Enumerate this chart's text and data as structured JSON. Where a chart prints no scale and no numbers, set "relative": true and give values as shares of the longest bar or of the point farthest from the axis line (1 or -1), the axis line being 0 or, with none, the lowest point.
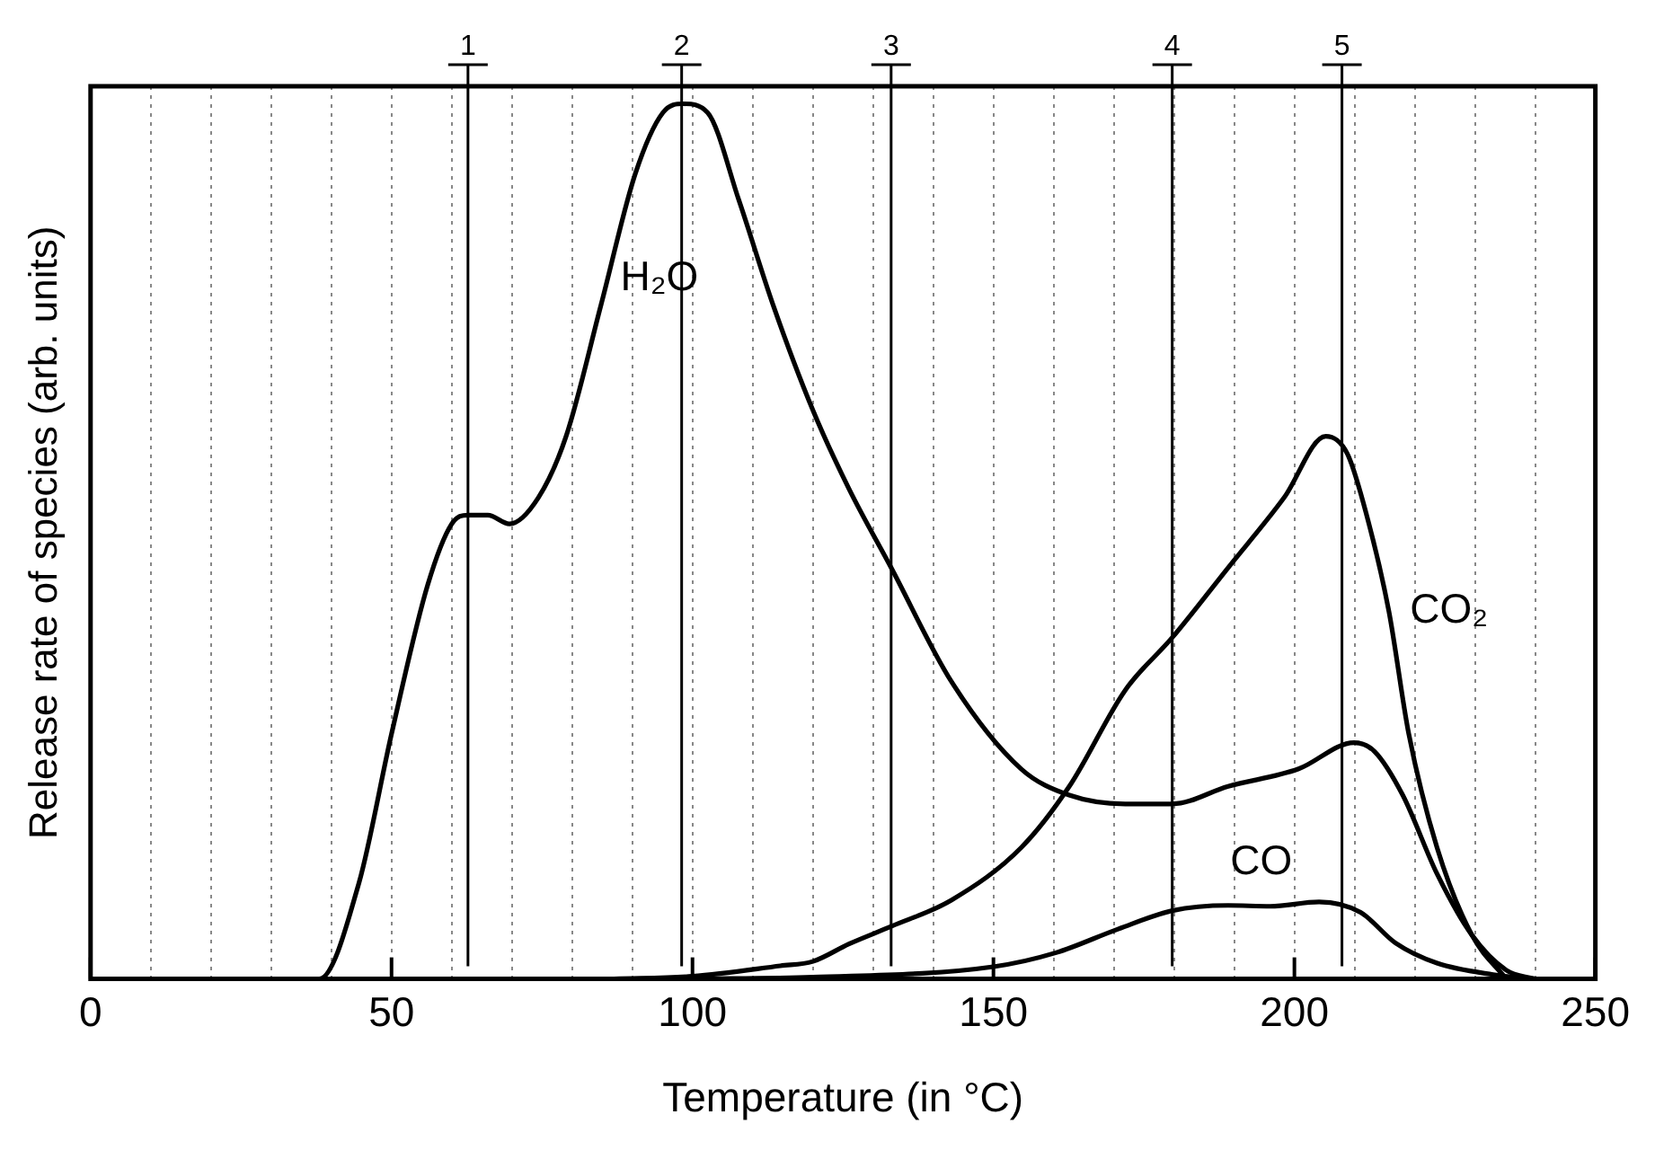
{
  "chart_data": {
    "type": "line",
    "xlabel": "Temperature (in °C)",
    "ylabel": "Release rate of species (arb. units)",
    "relative": true,
    "legend": false,
    "grid": "x",
    "marker": "none",
    "line_style": "solid",
    "xlim": [
      0,
      250
    ],
    "xticks": [
      0,
      {
        "value": 10,
        "label": null
      },
      {
        "value": 20,
        "label": null
      },
      {
        "value": 30,
        "label": null
      },
      {
        "value": 40,
        "label": null
      },
      50,
      {
        "value": 60,
        "label": null
      },
      {
        "value": 70,
        "label": null
      },
      {
        "value": 80,
        "label": null
      },
      {
        "value": 90,
        "label": null
      },
      100,
      {
        "value": 110,
        "label": null
      },
      {
        "value": 120,
        "label": null
      },
      {
        "value": 130,
        "label": null
      },
      {
        "value": 140,
        "label": null
      },
      150,
      {
        "value": 160,
        "label": null
      },
      {
        "value": 170,
        "label": null
      },
      {
        "value": 180,
        "label": null
      },
      {
        "value": 190,
        "label": null
      },
      200,
      {
        "value": 210,
        "label": null
      },
      {
        "value": 220,
        "label": null
      },
      {
        "value": 230,
        "label": null
      },
      {
        "value": 240,
        "label": null
      },
      250
    ],
    "series": [
      {
        "name": "H₂O",
        "color": "#000000",
        "x": [
          23,
          38,
          44.6,
          50,
          56,
          60,
          62.7,
          66,
          69.6,
          74.4,
          79,
          84.8,
          90.5,
          95.1,
          98.5,
          102.5,
          107.7,
          113.4,
          120,
          126,
          133,
          143,
          154.6,
          162.6,
          171.9,
          179.7,
          189,
          200.7,
          209.9,
          213.3,
          218,
          223.7,
          229.5,
          235.2,
          239.9
        ],
        "values": [
          0,
          0,
          0.11,
          0.28,
          0.45,
          0.52,
          0.53,
          0.53,
          0.52,
          0.55,
          0.62,
          0.77,
          0.92,
          0.99,
          1,
          0.99,
          0.89,
          0.77,
          0.65,
          0.56,
          0.47,
          0.34,
          0.24,
          0.21,
          0.2,
          0.2,
          0.22,
          0.24,
          0.27,
          0.26,
          0.21,
          0.12,
          0.05,
          0.01,
          0
        ]
      },
      {
        "name": "CO₂",
        "color": "#000000",
        "x": [
          87,
          100,
          114.6,
          120,
          126,
          133,
          143,
          154.6,
          162.6,
          171.9,
          179.7,
          189,
          198.3,
          205.2,
          208.8,
          212,
          215.7,
          219,
          223.7,
          229.5,
          235.2
        ],
        "values": [
          0,
          0.003,
          0.015,
          0.02,
          0.04,
          0.06,
          0.09,
          0.15,
          0.22,
          0.33,
          0.39,
          0.47,
          0.55,
          0.62,
          0.6,
          0.53,
          0.42,
          0.28,
          0.15,
          0.05,
          0
        ]
      },
      {
        "name": "CO",
        "color": "#000000",
        "x": [
          100,
          120,
          150,
          160.4,
          170.7,
          179.7,
          189,
          196,
          204.1,
          211,
          216.8,
          223.7,
          233,
          240
        ],
        "values": [
          0,
          0.002,
          0.014,
          0.03,
          0.057,
          0.078,
          0.084,
          0.083,
          0.088,
          0.076,
          0.041,
          0.018,
          0.005,
          0
        ]
      }
    ],
    "ref_lines": [
      {
        "axis": "x",
        "value": 62.7,
        "color": "#000000"
      },
      {
        "axis": "x",
        "value": 98.2,
        "color": "#000000"
      },
      {
        "axis": "x",
        "value": 133,
        "color": "#000000"
      },
      {
        "axis": "x",
        "value": 179.7,
        "color": "#000000"
      },
      {
        "axis": "x",
        "value": 207.9,
        "color": "#000000"
      }
    ],
    "annotations": [
      "1",
      "2",
      "3",
      "4",
      "5"
    ]
  }
}
